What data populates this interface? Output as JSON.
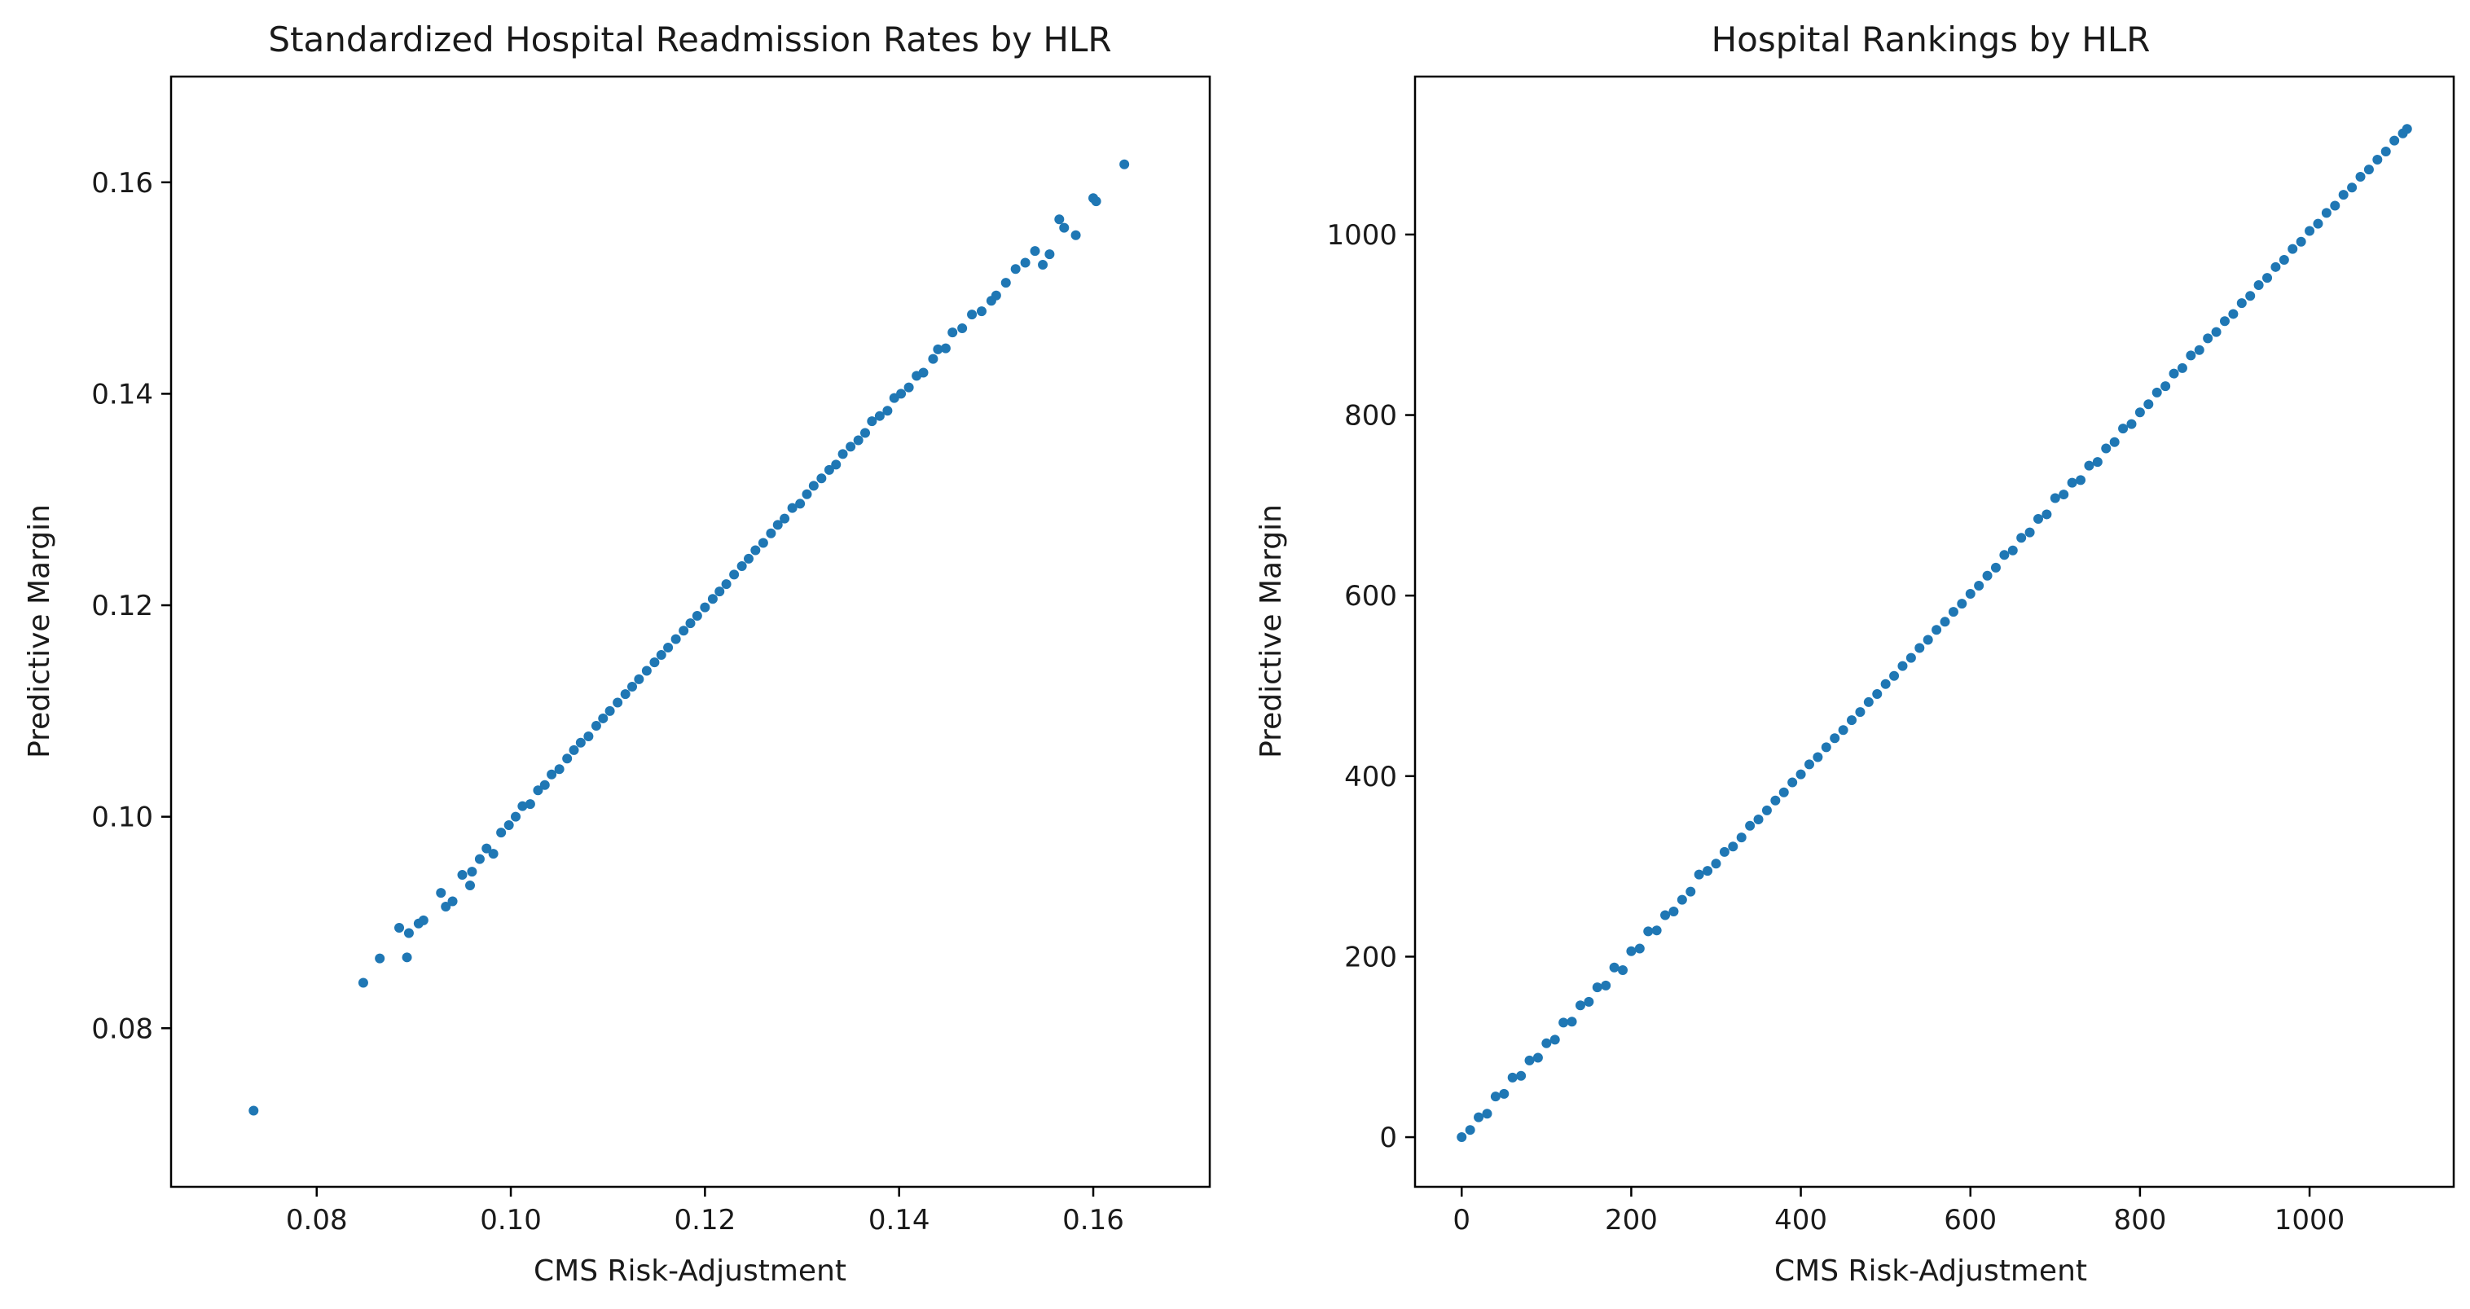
{
  "chart_data": [
    {
      "type": "scatter",
      "title": "Standardized Hospital Readmission Rates by HLR",
      "xlabel": "CMS Risk-Adjustment",
      "ylabel": "Predictive Margin",
      "xlim": [
        0.065,
        0.172
      ],
      "ylim": [
        0.065,
        0.17
      ],
      "xticks": [
        0.08,
        0.1,
        0.12,
        0.14,
        0.16
      ],
      "yticks": [
        0.08,
        0.1,
        0.12,
        0.14,
        0.16
      ],
      "tick_labels_x": [
        "0.08",
        "0.10",
        "0.12",
        "0.14",
        "0.16"
      ],
      "tick_labels_y": [
        "0.08",
        "0.10",
        "0.12",
        "0.14",
        "0.16"
      ],
      "grid": false,
      "color": "#1f77b4",
      "points": [
        [
          0.0735,
          0.0722
        ],
        [
          0.0848,
          0.0843
        ],
        [
          0.0865,
          0.0866
        ],
        [
          0.0885,
          0.0895
        ],
        [
          0.0893,
          0.0867
        ],
        [
          0.0895,
          0.089
        ],
        [
          0.0905,
          0.0899
        ],
        [
          0.091,
          0.0902
        ],
        [
          0.0928,
          0.0928
        ],
        [
          0.0933,
          0.0915
        ],
        [
          0.094,
          0.092
        ],
        [
          0.095,
          0.0945
        ],
        [
          0.0958,
          0.0935
        ],
        [
          0.096,
          0.0948
        ],
        [
          0.0968,
          0.096
        ],
        [
          0.0975,
          0.097
        ],
        [
          0.0982,
          0.0965
        ],
        [
          0.099,
          0.0985
        ],
        [
          0.0998,
          0.0992
        ],
        [
          0.1005,
          0.1
        ],
        [
          0.1012,
          0.101
        ],
        [
          0.102,
          0.1012
        ],
        [
          0.1028,
          0.1025
        ],
        [
          0.1035,
          0.103
        ],
        [
          0.1042,
          0.104
        ],
        [
          0.105,
          0.1045
        ],
        [
          0.1058,
          0.1055
        ],
        [
          0.1065,
          0.1063
        ],
        [
          0.1072,
          0.107
        ],
        [
          0.108,
          0.1076
        ],
        [
          0.1088,
          0.1086
        ],
        [
          0.1095,
          0.1093
        ],
        [
          0.1102,
          0.11
        ],
        [
          0.111,
          0.1108
        ],
        [
          0.1118,
          0.1116
        ],
        [
          0.1125,
          0.1123
        ],
        [
          0.1132,
          0.113
        ],
        [
          0.114,
          0.1138
        ],
        [
          0.1148,
          0.1146
        ],
        [
          0.1155,
          0.1153
        ],
        [
          0.1162,
          0.116
        ],
        [
          0.117,
          0.1168
        ],
        [
          0.1178,
          0.1176
        ],
        [
          0.1185,
          0.1183
        ],
        [
          0.1192,
          0.119
        ],
        [
          0.12,
          0.1198
        ],
        [
          0.1208,
          0.1206
        ],
        [
          0.1215,
          0.1213
        ],
        [
          0.1222,
          0.122
        ],
        [
          0.123,
          0.1229
        ],
        [
          0.1238,
          0.1237
        ],
        [
          0.1245,
          0.1244
        ],
        [
          0.1252,
          0.1252
        ],
        [
          0.126,
          0.1259
        ],
        [
          0.1268,
          0.1268
        ],
        [
          0.1275,
          0.1276
        ],
        [
          0.1282,
          0.1282
        ],
        [
          0.129,
          0.1292
        ],
        [
          0.1298,
          0.1296
        ],
        [
          0.1305,
          0.1305
        ],
        [
          0.1312,
          0.1313
        ],
        [
          0.132,
          0.132
        ],
        [
          0.1328,
          0.1328
        ],
        [
          0.1335,
          0.1333
        ],
        [
          0.1342,
          0.1343
        ],
        [
          0.135,
          0.135
        ],
        [
          0.1358,
          0.1356
        ],
        [
          0.1365,
          0.1363
        ],
        [
          0.1372,
          0.1374
        ],
        [
          0.138,
          0.1379
        ],
        [
          0.1388,
          0.1384
        ],
        [
          0.1395,
          0.1396
        ],
        [
          0.1402,
          0.14
        ],
        [
          0.141,
          0.1406
        ],
        [
          0.1418,
          0.1417
        ],
        [
          0.1425,
          0.142
        ],
        [
          0.1435,
          0.1433
        ],
        [
          0.144,
          0.1442
        ],
        [
          0.1448,
          0.1443
        ],
        [
          0.1455,
          0.1458
        ],
        [
          0.1465,
          0.1462
        ],
        [
          0.1475,
          0.1475
        ],
        [
          0.1485,
          0.1478
        ],
        [
          0.1495,
          0.1488
        ],
        [
          0.15,
          0.1493
        ],
        [
          0.151,
          0.1505
        ],
        [
          0.152,
          0.1518
        ],
        [
          0.153,
          0.1524
        ],
        [
          0.154,
          0.1535
        ],
        [
          0.1548,
          0.1522
        ],
        [
          0.1555,
          0.1532
        ],
        [
          0.1565,
          0.1565
        ],
        [
          0.157,
          0.1557
        ],
        [
          0.1582,
          0.155
        ],
        [
          0.16,
          0.1585
        ],
        [
          0.1603,
          0.1582
        ],
        [
          0.1632,
          0.1617
        ]
      ]
    },
    {
      "type": "scatter",
      "title": "Hospital Rankings by HLR",
      "xlabel": "CMS Risk-Adjustment",
      "ylabel": "Predictive Margin",
      "xlim": [
        -55,
        1170
      ],
      "ylim": [
        -55,
        1175
      ],
      "xticks": [
        0,
        200,
        400,
        600,
        800,
        1000
      ],
      "yticks": [
        0,
        200,
        400,
        600,
        800,
        1000
      ],
      "tick_labels_x": [
        "0",
        "200",
        "400",
        "600",
        "800",
        "1000"
      ],
      "tick_labels_y": [
        "0",
        "200",
        "400",
        "600",
        "800",
        "1000"
      ],
      "grid": false,
      "color": "#1f77b4",
      "points": [
        [
          0,
          0
        ],
        [
          10,
          8
        ],
        [
          20,
          22
        ],
        [
          30,
          26
        ],
        [
          40,
          45
        ],
        [
          50,
          48
        ],
        [
          60,
          66
        ],
        [
          70,
          68
        ],
        [
          80,
          85
        ],
        [
          90,
          88
        ],
        [
          100,
          104
        ],
        [
          110,
          108
        ],
        [
          120,
          127
        ],
        [
          130,
          128
        ],
        [
          140,
          146
        ],
        [
          150,
          150
        ],
        [
          160,
          166
        ],
        [
          170,
          168
        ],
        [
          180,
          188
        ],
        [
          190,
          185
        ],
        [
          200,
          206
        ],
        [
          210,
          209
        ],
        [
          220,
          228
        ],
        [
          230,
          229
        ],
        [
          240,
          246
        ],
        [
          250,
          250
        ],
        [
          260,
          263
        ],
        [
          270,
          272
        ],
        [
          280,
          291
        ],
        [
          290,
          295
        ],
        [
          300,
          303
        ],
        [
          310,
          316
        ],
        [
          320,
          322
        ],
        [
          330,
          332
        ],
        [
          340,
          345
        ],
        [
          350,
          352
        ],
        [
          360,
          362
        ],
        [
          370,
          373
        ],
        [
          380,
          382
        ],
        [
          390,
          393
        ],
        [
          400,
          402
        ],
        [
          410,
          413
        ],
        [
          420,
          421
        ],
        [
          430,
          432
        ],
        [
          440,
          442
        ],
        [
          450,
          451
        ],
        [
          460,
          462
        ],
        [
          470,
          471
        ],
        [
          480,
          482
        ],
        [
          490,
          491
        ],
        [
          500,
          502
        ],
        [
          510,
          511
        ],
        [
          520,
          522
        ],
        [
          530,
          531
        ],
        [
          540,
          542
        ],
        [
          550,
          551
        ],
        [
          560,
          562
        ],
        [
          570,
          571
        ],
        [
          580,
          582
        ],
        [
          590,
          591
        ],
        [
          600,
          602
        ],
        [
          610,
          611
        ],
        [
          620,
          622
        ],
        [
          630,
          631
        ],
        [
          640,
          645
        ],
        [
          650,
          650
        ],
        [
          660,
          664
        ],
        [
          670,
          670
        ],
        [
          680,
          685
        ],
        [
          690,
          690
        ],
        [
          700,
          708
        ],
        [
          710,
          712
        ],
        [
          720,
          725
        ],
        [
          730,
          728
        ],
        [
          740,
          744
        ],
        [
          750,
          748
        ],
        [
          760,
          763
        ],
        [
          770,
          770
        ],
        [
          780,
          785
        ],
        [
          790,
          790
        ],
        [
          800,
          803
        ],
        [
          810,
          812
        ],
        [
          820,
          825
        ],
        [
          830,
          832
        ],
        [
          840,
          846
        ],
        [
          850,
          852
        ],
        [
          860,
          866
        ],
        [
          870,
          872
        ],
        [
          880,
          885
        ],
        [
          890,
          892
        ],
        [
          900,
          904
        ],
        [
          910,
          912
        ],
        [
          920,
          924
        ],
        [
          930,
          932
        ],
        [
          940,
          944
        ],
        [
          950,
          952
        ],
        [
          960,
          964
        ],
        [
          970,
          972
        ],
        [
          980,
          984
        ],
        [
          990,
          992
        ],
        [
          1000,
          1004
        ],
        [
          1010,
          1012
        ],
        [
          1020,
          1024
        ],
        [
          1030,
          1032
        ],
        [
          1040,
          1044
        ],
        [
          1050,
          1052
        ],
        [
          1060,
          1064
        ],
        [
          1070,
          1072
        ],
        [
          1080,
          1083
        ],
        [
          1090,
          1092
        ],
        [
          1100,
          1104
        ],
        [
          1110,
          1112
        ],
        [
          1115,
          1117
        ]
      ]
    }
  ]
}
